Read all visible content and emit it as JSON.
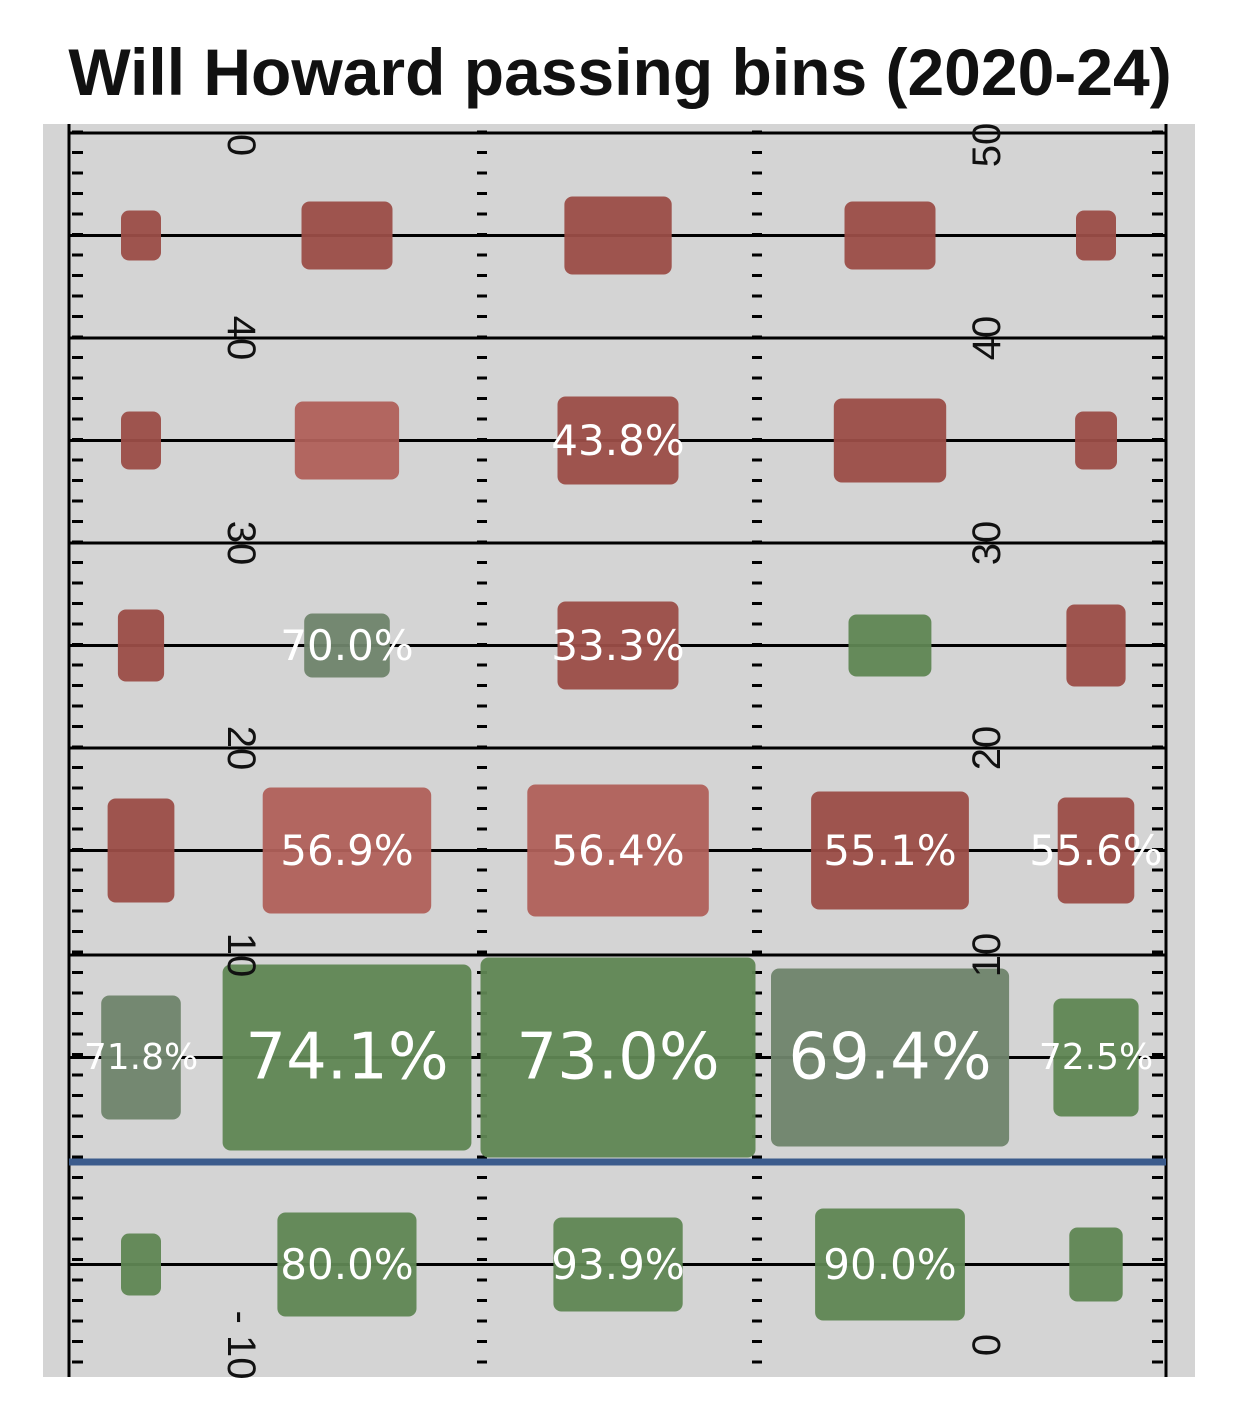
{
  "chart_data": {
    "type": "heatmap",
    "title": "Will Howard passing bins (2020-24)",
    "x_lanes": 5,
    "y_bins": [
      "-10-0",
      "0-10",
      "10-20",
      "20-30",
      "30-40",
      "40-50"
    ],
    "yard_labels_left": [
      "0",
      "40",
      "30",
      "20",
      "10",
      "- 10"
    ],
    "yard_labels_right": [
      "50",
      "40",
      "30",
      "20",
      "10",
      "0"
    ],
    "cells": [
      {
        "lane": 0,
        "bin": "40-50",
        "label": "",
        "color": "red",
        "relative_volume": 0.25
      },
      {
        "lane": 1,
        "bin": "40-50",
        "label": "",
        "color": "red",
        "relative_volume": 0.34
      },
      {
        "lane": 2,
        "bin": "40-50",
        "label": "",
        "color": "red",
        "relative_volume": 0.39
      },
      {
        "lane": 3,
        "bin": "40-50",
        "label": "",
        "color": "red",
        "relative_volume": 0.34
      },
      {
        "lane": 4,
        "bin": "40-50",
        "label": "",
        "color": "red",
        "relative_volume": 0.24
      },
      {
        "lane": 0,
        "bin": "30-40",
        "label": "",
        "color": "red",
        "relative_volume": 0.29
      },
      {
        "lane": 1,
        "bin": "30-40",
        "label": "",
        "color": "light-red",
        "relative_volume": 0.39
      },
      {
        "lane": 2,
        "bin": "30-40",
        "label": "43.8%",
        "color": "red",
        "relative_volume": 0.44
      },
      {
        "lane": 3,
        "bin": "30-40",
        "label": "",
        "color": "red",
        "relative_volume": 0.42
      },
      {
        "lane": 4,
        "bin": "30-40",
        "label": "",
        "color": "red",
        "relative_volume": 0.29
      },
      {
        "lane": 0,
        "bin": "20-30",
        "label": "",
        "color": "red",
        "relative_volume": 0.36
      },
      {
        "lane": 1,
        "bin": "20-30",
        "label": "70.0%",
        "color": "gray-green",
        "relative_volume": 0.32
      },
      {
        "lane": 2,
        "bin": "20-30",
        "label": "33.3%",
        "color": "red",
        "relative_volume": 0.44
      },
      {
        "lane": 3,
        "bin": "20-30",
        "label": "",
        "color": "green",
        "relative_volume": 0.31
      },
      {
        "lane": 4,
        "bin": "20-30",
        "label": "",
        "color": "red",
        "relative_volume": 0.41
      },
      {
        "lane": 0,
        "bin": "10-20",
        "label": "",
        "color": "red",
        "relative_volume": 0.52
      },
      {
        "lane": 1,
        "bin": "10-20",
        "label": "56.9%",
        "color": "light-red",
        "relative_volume": 0.63
      },
      {
        "lane": 2,
        "bin": "10-20",
        "label": "56.4%",
        "color": "light-red",
        "relative_volume": 0.66
      },
      {
        "lane": 3,
        "bin": "10-20",
        "label": "55.1%",
        "color": "red",
        "relative_volume": 0.59
      },
      {
        "lane": 4,
        "bin": "10-20",
        "label": "55.6%",
        "color": "red",
        "relative_volume": 0.53
      },
      {
        "lane": 0,
        "bin": "0-10",
        "label": "71.8%",
        "color": "gray-green",
        "relative_volume": 0.62
      },
      {
        "lane": 1,
        "bin": "0-10",
        "label": "74.1%",
        "color": "green",
        "relative_volume": 0.93
      },
      {
        "lane": 2,
        "bin": "0-10",
        "label": "73.0%",
        "color": "green",
        "relative_volume": 1.0
      },
      {
        "lane": 3,
        "bin": "0-10",
        "label": "69.4%",
        "color": "gray-green",
        "relative_volume": 0.89
      },
      {
        "lane": 4,
        "bin": "0-10",
        "label": "72.5%",
        "color": "green",
        "relative_volume": 0.59
      },
      {
        "lane": 0,
        "bin": "-10-0",
        "label": "",
        "color": "green",
        "relative_volume": 0.31
      },
      {
        "lane": 1,
        "bin": "-10-0",
        "label": "80.0%",
        "color": "green",
        "relative_volume": 0.52
      },
      {
        "lane": 2,
        "bin": "-10-0",
        "label": "93.9%",
        "color": "green",
        "relative_volume": 0.47
      },
      {
        "lane": 3,
        "bin": "-10-0",
        "label": "90.0%",
        "color": "green",
        "relative_volume": 0.56
      },
      {
        "lane": 4,
        "bin": "-10-0",
        "label": "",
        "color": "green",
        "relative_volume": 0.37
      }
    ],
    "line_of_scrimmage": 0,
    "colors": {
      "red": "#9b4d47",
      "light-red": "#b0605a",
      "green": "#5f8653",
      "gray-green": "#6f846b",
      "field": "#d4d4d4",
      "scrimmage_line": "#3b5b8c"
    }
  }
}
